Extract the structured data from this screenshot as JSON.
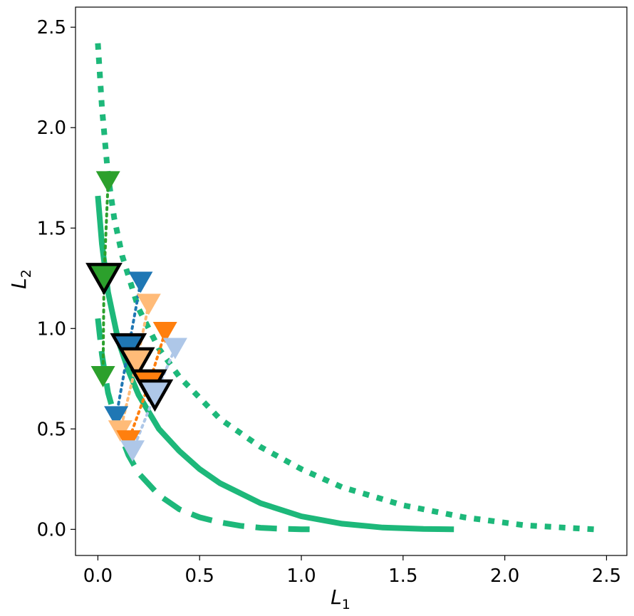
{
  "chart_data": {
    "type": "scatter",
    "title": "",
    "xlabel": {
      "main": "L",
      "sub": "1"
    },
    "ylabel": {
      "main": "L",
      "sub": "2"
    },
    "xlim": [
      -0.11,
      2.6
    ],
    "ylim": [
      -0.13,
      2.6
    ],
    "xticks": [
      "0.0",
      "0.5",
      "1.0",
      "1.5",
      "2.0",
      "2.5"
    ],
    "yticks": [
      "0.0",
      "0.5",
      "1.0",
      "1.5",
      "2.0",
      "2.5"
    ],
    "grid": false,
    "colors": {
      "front": "#1db87a",
      "blue": "#1f77b4",
      "orange": "#ff7f0e",
      "peach": "#ffbb78",
      "lightblue": "#aec7e8",
      "green": "#2ca02c",
      "outline": "#000000"
    },
    "fronts": [
      {
        "style": "dashed",
        "x": [
          0.0,
          0.02,
          0.05,
          0.1,
          0.15,
          0.2,
          0.3,
          0.4,
          0.5,
          0.6,
          0.7,
          0.8,
          0.9,
          1.0,
          1.05
        ],
        "y": [
          1.05,
          0.87,
          0.68,
          0.5,
          0.37,
          0.28,
          0.17,
          0.1,
          0.06,
          0.035,
          0.018,
          0.008,
          0.003,
          0.0005,
          0.0
        ]
      },
      {
        "style": "solid",
        "x": [
          0.0,
          0.02,
          0.05,
          0.1,
          0.15,
          0.2,
          0.3,
          0.4,
          0.5,
          0.6,
          0.8,
          1.0,
          1.2,
          1.4,
          1.6,
          1.75
        ],
        "y": [
          1.66,
          1.42,
          1.18,
          0.94,
          0.79,
          0.67,
          0.5,
          0.39,
          0.3,
          0.23,
          0.13,
          0.065,
          0.028,
          0.009,
          0.002,
          0.0
        ]
      },
      {
        "style": "dotted",
        "x": [
          0.0,
          0.02,
          0.05,
          0.08,
          0.12,
          0.2,
          0.3,
          0.4,
          0.6,
          0.8,
          1.0,
          1.2,
          1.5,
          1.8,
          2.1,
          2.44
        ],
        "y": [
          2.42,
          2.1,
          1.76,
          1.55,
          1.36,
          1.1,
          0.9,
          0.76,
          0.55,
          0.41,
          0.3,
          0.21,
          0.12,
          0.06,
          0.02,
          0.0
        ]
      }
    ],
    "trajectories": [
      {
        "color": "green",
        "points": [
          [
            0.05,
            1.73
          ],
          [
            0.03,
            1.25
          ],
          [
            0.025,
            0.76
          ]
        ]
      },
      {
        "color": "blue",
        "points": [
          [
            0.21,
            1.23
          ],
          [
            0.15,
            0.9
          ],
          [
            0.09,
            0.56
          ]
        ]
      },
      {
        "color": "peach",
        "points": [
          [
            0.25,
            1.12
          ],
          [
            0.19,
            0.83
          ],
          [
            0.11,
            0.49
          ]
        ]
      },
      {
        "color": "orange",
        "points": [
          [
            0.33,
            0.98
          ],
          [
            0.25,
            0.72
          ],
          [
            0.15,
            0.44
          ]
        ]
      },
      {
        "color": "lightblue",
        "points": [
          [
            0.38,
            0.9
          ],
          [
            0.28,
            0.67
          ],
          [
            0.17,
            0.39
          ]
        ]
      }
    ]
  }
}
